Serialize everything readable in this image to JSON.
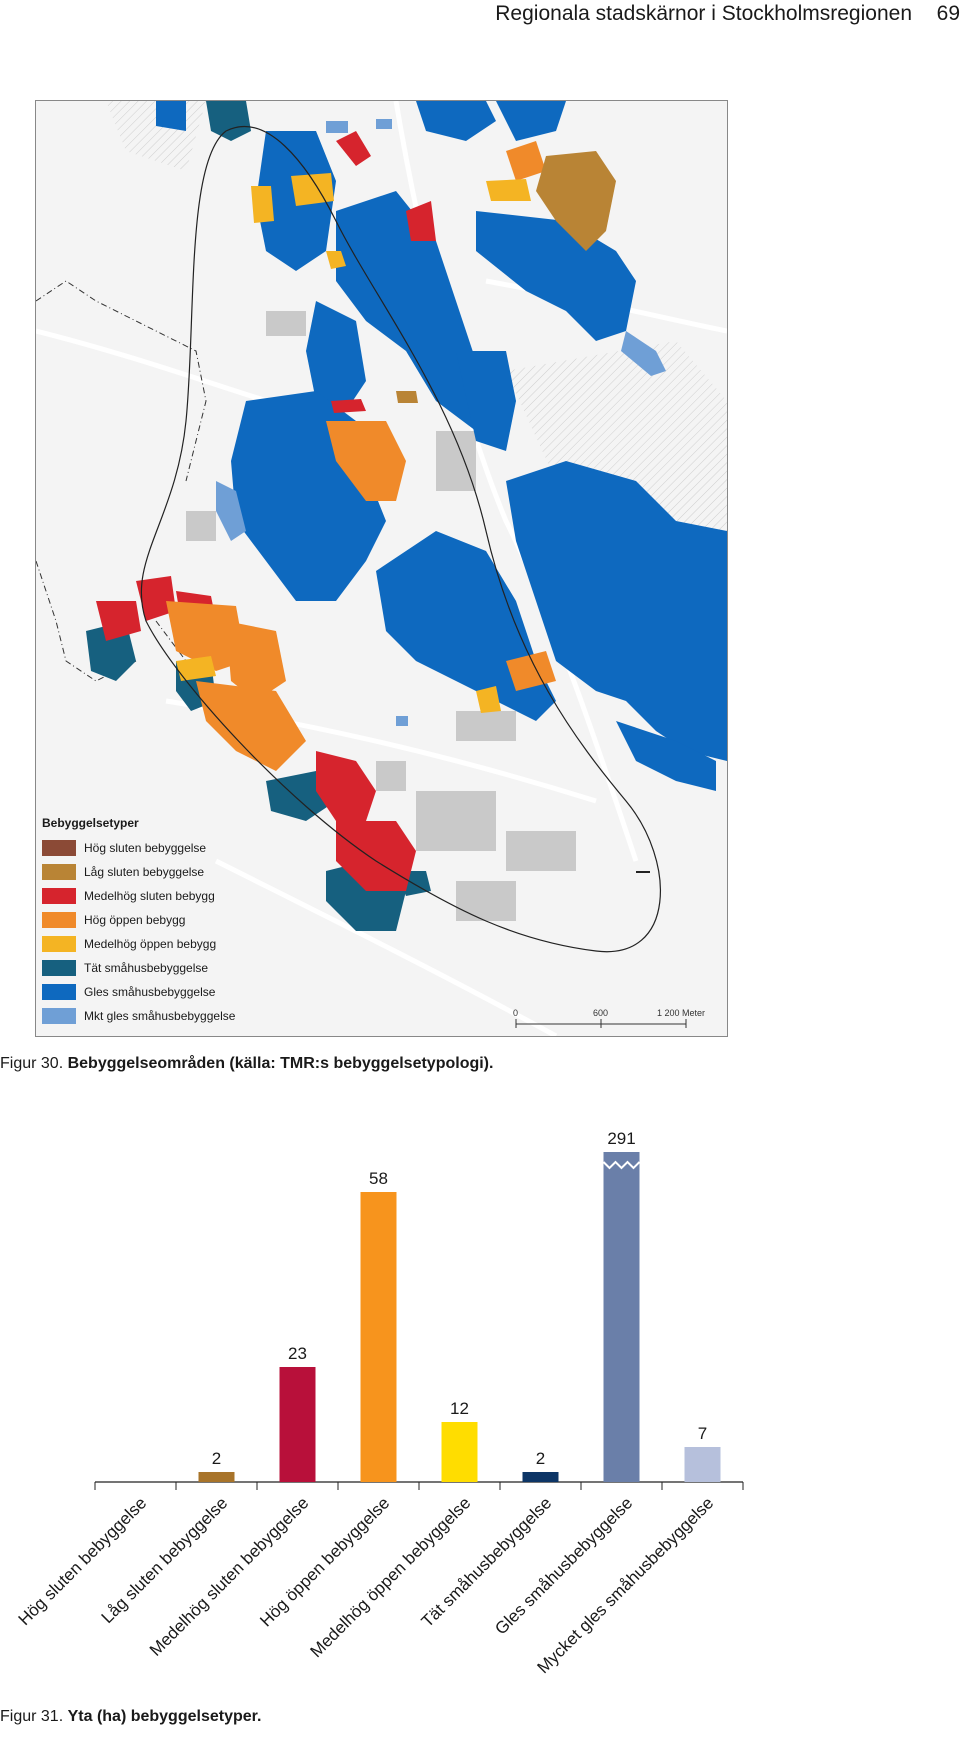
{
  "header": {
    "title": "Regionala stadskärnor i Stockholmsregionen",
    "page_number": "69"
  },
  "map": {
    "legend_title": "Bebyggelsetyper",
    "legend": [
      {
        "label": "Hög sluten bebyggelse",
        "color": "#8b4a36"
      },
      {
        "label": "Låg sluten bebyggelse",
        "color": "#b98435"
      },
      {
        "label": "Medelhög sluten bebygg",
        "color": "#d6242d"
      },
      {
        "label": "Hög öppen bebygg",
        "color": "#f08a2a"
      },
      {
        "label": "Medelhög öppen bebygg",
        "color": "#f4b423"
      },
      {
        "label": "Tät småhusbebyggelse",
        "color": "#16607f"
      },
      {
        "label": "Gles småhusbebyggelse",
        "color": "#0e69bf"
      },
      {
        "label": "Mkt gles småhusbebyggelse",
        "color": "#6f9fd6"
      }
    ],
    "scale": {
      "zero": "0",
      "mid": "600",
      "end": "1 200 Meter"
    }
  },
  "figure30": {
    "prefix": "Figur 30.",
    "text": "Bebyggelseområden (källa: TMR:s bebyggelsetypologi)."
  },
  "chart_data": {
    "type": "bar",
    "categories": [
      "Hög sluten bebyggelse",
      "Låg sluten bebyggelse",
      "Medelhög sluten bebyggelse",
      "Hög öppen bebyggelse",
      "Medelhög öppen bebyggelse",
      "Tät småhusbebyggelse",
      "Gles småhusbebyggelse",
      "Mycket gles småhusbebyggelse"
    ],
    "values": [
      0,
      2,
      23,
      58,
      12,
      2,
      291,
      7
    ],
    "data_labels": [
      "",
      "2",
      "23",
      "58",
      "12",
      "2",
      "291",
      "7"
    ],
    "colors": [
      "#8b4a36",
      "#a8742a",
      "#b8103a",
      "#f7941d",
      "#ffdd00",
      "#0d3566",
      "#6a7fa9",
      "#b6c0dc"
    ],
    "axis_break": true,
    "title": "",
    "xlabel": "",
    "ylabel": ""
  },
  "figure31": {
    "prefix": "Figur 31.",
    "text": "Yta (ha) bebyggelsetyper."
  }
}
